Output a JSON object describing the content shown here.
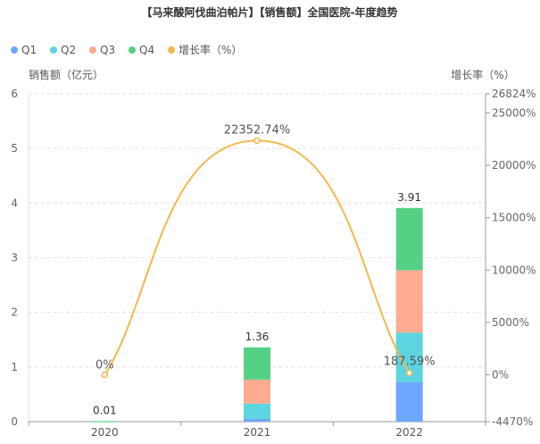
{
  "chart_data": {
    "type": "bar",
    "stacked": true,
    "title": "【马来酸阿伐曲泊帕片】【销售额】全国医院-年度趋势",
    "categories": [
      "2020",
      "2021",
      "2022"
    ],
    "series": [
      {
        "name": "Q1",
        "color": "#6da6ff",
        "values": [
          0.0,
          0.05,
          0.72
        ]
      },
      {
        "name": "Q2",
        "color": "#5dd5e0",
        "values": [
          0.0,
          0.28,
          0.91
        ]
      },
      {
        "name": "Q3",
        "color": "#ffab91",
        "values": [
          0.0,
          0.44,
          1.14
        ]
      },
      {
        "name": "Q4",
        "color": "#55d185",
        "values": [
          0.01,
          0.59,
          1.14
        ]
      }
    ],
    "totals": [
      "0.01",
      "1.36",
      "3.91"
    ],
    "line": {
      "name": "增长率（%）",
      "color": "#f5b84e",
      "values": [
        0,
        22352.74,
        187.59
      ],
      "labels": [
        "0%",
        "22352.74%",
        "187.59%"
      ]
    },
    "ylabel": "销售额（亿元）",
    "y2label": "增长率（%）",
    "ylim": [
      0,
      6
    ],
    "y_ticks": [
      "0",
      "1",
      "2",
      "3",
      "4",
      "5",
      "6"
    ],
    "y2lim": [
      -4470,
      26824
    ],
    "y2_ticks": [
      {
        "value": -4470,
        "label": "-4470%"
      },
      {
        "value": 0,
        "label": "0%"
      },
      {
        "value": 5000,
        "label": "5000%"
      },
      {
        "value": 10000,
        "label": "10000%"
      },
      {
        "value": 15000,
        "label": "15000%"
      },
      {
        "value": 20000,
        "label": "20000%"
      },
      {
        "value": 25000,
        "label": "25000%"
      },
      {
        "value": 26824,
        "label": "26824%"
      }
    ],
    "legend_position": "top-left",
    "grid": true
  }
}
